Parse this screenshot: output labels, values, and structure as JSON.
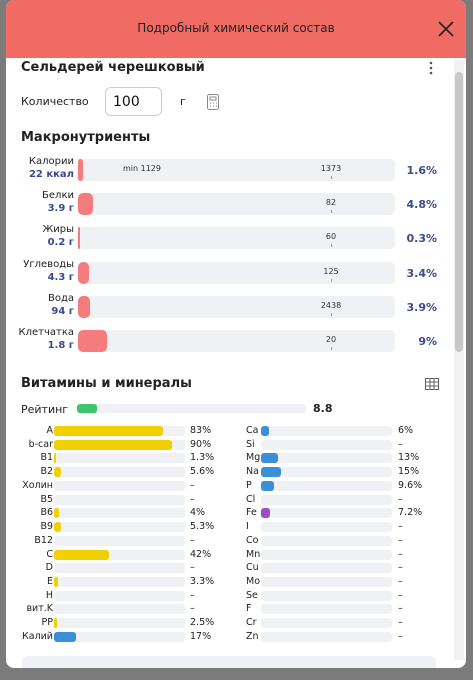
{
  "header": {
    "title": "Подробный химический состав"
  },
  "product": {
    "name": "Сельдерей черешковый"
  },
  "quantity": {
    "label": "Количество",
    "value": "100",
    "unit": "г"
  },
  "macros": {
    "title": "Макронутриенты",
    "rows": [
      {
        "name": "Калории",
        "amount": "22 ккал",
        "min_label": "min 1129",
        "norm": "1373",
        "percent": 1.6,
        "percent_label": "1.6%"
      },
      {
        "name": "Белки",
        "amount": "3.9 г",
        "norm": "82",
        "percent": 4.8,
        "percent_label": "4.8%"
      },
      {
        "name": "Жиры",
        "amount": "0.2 г",
        "norm": "60",
        "percent": 0.3,
        "percent_label": "0.3%"
      },
      {
        "name": "Углеводы",
        "amount": "4.3 г",
        "norm": "125",
        "percent": 3.4,
        "percent_label": "3.4%"
      },
      {
        "name": "Вода",
        "amount": "94 г",
        "norm": "2438",
        "percent": 3.9,
        "percent_label": "3.9%"
      },
      {
        "name": "Клетчатка",
        "amount": "1.8 г",
        "norm": "20",
        "percent": 9,
        "percent_label": "9%"
      }
    ]
  },
  "micros": {
    "title": "Витамины и минералы",
    "rating": {
      "label": "Рейтинг",
      "value": 8.8
    },
    "left": [
      {
        "name": "A",
        "percent": 83,
        "label": "83%",
        "color": "#f0d000"
      },
      {
        "name": "b-car",
        "percent": 90,
        "label": "90%",
        "color": "#f0d000"
      },
      {
        "name": "B1",
        "percent": 1.3,
        "label": "1.3%",
        "color": "#f0d000"
      },
      {
        "name": "B2",
        "percent": 5.6,
        "label": "5.6%",
        "color": "#f0d000"
      },
      {
        "name": "Холин",
        "percent": null,
        "label": "–",
        "color": "#f0d000"
      },
      {
        "name": "B5",
        "percent": null,
        "label": "–",
        "color": "#f0d000"
      },
      {
        "name": "B6",
        "percent": 4,
        "label": "4%",
        "color": "#f0d000"
      },
      {
        "name": "B9",
        "percent": 5.3,
        "label": "5.3%",
        "color": "#f0d000"
      },
      {
        "name": "B12",
        "percent": null,
        "label": "–",
        "color": "#f0d000"
      },
      {
        "name": "C",
        "percent": 42,
        "label": "42%",
        "color": "#f0d000"
      },
      {
        "name": "D",
        "percent": null,
        "label": "–",
        "color": "#f0d000"
      },
      {
        "name": "E",
        "percent": 3.3,
        "label": "3.3%",
        "color": "#f0d000"
      },
      {
        "name": "H",
        "percent": null,
        "label": "–",
        "color": "#f0d000"
      },
      {
        "name": "вит.K",
        "percent": null,
        "label": "–",
        "color": "#f0d000"
      },
      {
        "name": "PP",
        "percent": 2.5,
        "label": "2.5%",
        "color": "#f0d000"
      },
      {
        "name": "Калий",
        "percent": 17,
        "label": "17%",
        "color": "#3b8fd8"
      }
    ],
    "right": [
      {
        "name": "Ca",
        "percent": 6,
        "label": "6%",
        "color": "#3b8fd8"
      },
      {
        "name": "Si",
        "percent": null,
        "label": "–",
        "color": "#3b8fd8"
      },
      {
        "name": "Mg",
        "percent": 13,
        "label": "13%",
        "color": "#3b8fd8"
      },
      {
        "name": "Na",
        "percent": 15,
        "label": "15%",
        "color": "#3b8fd8"
      },
      {
        "name": "P",
        "percent": 9.6,
        "label": "9.6%",
        "color": "#3b8fd8"
      },
      {
        "name": "Cl",
        "percent": null,
        "label": "–",
        "color": "#3b8fd8"
      },
      {
        "name": "Fe",
        "percent": 7.2,
        "label": "7.2%",
        "color": "#9b4dca"
      },
      {
        "name": "I",
        "percent": null,
        "label": "–",
        "color": "#3b8fd8"
      },
      {
        "name": "Co",
        "percent": null,
        "label": "–",
        "color": "#3b8fd8"
      },
      {
        "name": "Mn",
        "percent": null,
        "label": "–",
        "color": "#3b8fd8"
      },
      {
        "name": "Cu",
        "percent": null,
        "label": "–",
        "color": "#3b8fd8"
      },
      {
        "name": "Mo",
        "percent": null,
        "label": "–",
        "color": "#3b8fd8"
      },
      {
        "name": "Se",
        "percent": null,
        "label": "–",
        "color": "#3b8fd8"
      },
      {
        "name": "F",
        "percent": null,
        "label": "–",
        "color": "#3b8fd8"
      },
      {
        "name": "Cr",
        "percent": null,
        "label": "–",
        "color": "#3b8fd8"
      },
      {
        "name": "Zn",
        "percent": null,
        "label": "–",
        "color": "#3b8fd8"
      }
    ]
  }
}
